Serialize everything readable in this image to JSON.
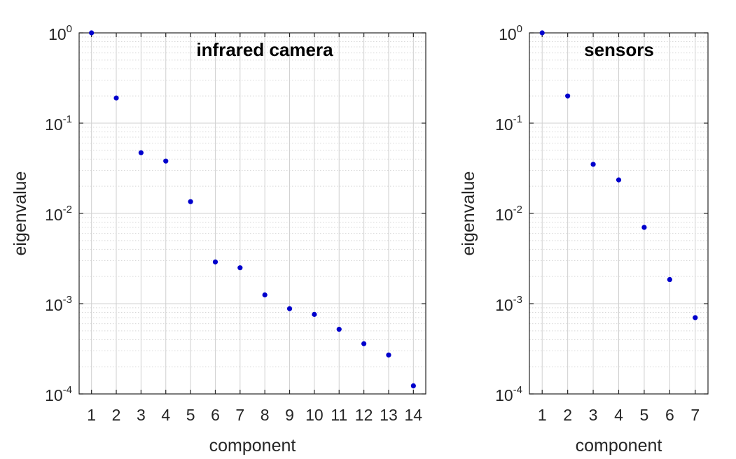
{
  "chart_data": [
    {
      "type": "scatter",
      "title": "infrared camera",
      "xlabel": "component",
      "ylabel": "eigenvalue",
      "yscale": "log",
      "xlim": [
        0.5,
        14.5
      ],
      "ylim": [
        0.0001,
        1
      ],
      "grid": true,
      "marker_color": "#0000cc",
      "x_ticks": [
        "1",
        "2",
        "3",
        "4",
        "5",
        "6",
        "7",
        "8",
        "9",
        "10",
        "11",
        "12",
        "13",
        "14"
      ],
      "y_ticks": [
        {
          "base": "10",
          "exp": "0"
        },
        {
          "base": "10",
          "exp": "-1"
        },
        {
          "base": "10",
          "exp": "-2"
        },
        {
          "base": "10",
          "exp": "-3"
        },
        {
          "base": "10",
          "exp": "-4"
        }
      ],
      "x": [
        1,
        2,
        3,
        4,
        5,
        6,
        7,
        8,
        9,
        10,
        11,
        12,
        13,
        14
      ],
      "values": [
        1.0,
        0.19,
        0.047,
        0.038,
        0.0135,
        0.0029,
        0.0025,
        0.00125,
        0.00088,
        0.00076,
        0.00052,
        0.00036,
        0.00027,
        0.000123
      ]
    },
    {
      "type": "scatter",
      "title": "sensors",
      "xlabel": "component",
      "ylabel": "eigenvalue",
      "yscale": "log",
      "xlim": [
        0.5,
        7.5
      ],
      "ylim": [
        0.0001,
        1
      ],
      "grid": true,
      "marker_color": "#0000cc",
      "x_ticks": [
        "1",
        "2",
        "3",
        "4",
        "5",
        "6",
        "7"
      ],
      "y_ticks": [
        {
          "base": "10",
          "exp": "0"
        },
        {
          "base": "10",
          "exp": "-1"
        },
        {
          "base": "10",
          "exp": "-2"
        },
        {
          "base": "10",
          "exp": "-3"
        },
        {
          "base": "10",
          "exp": "-4"
        }
      ],
      "x": [
        1,
        2,
        3,
        4,
        5,
        6,
        7
      ],
      "values": [
        1.0,
        0.2,
        0.035,
        0.0235,
        0.007,
        0.00185,
        0.0007
      ]
    }
  ]
}
